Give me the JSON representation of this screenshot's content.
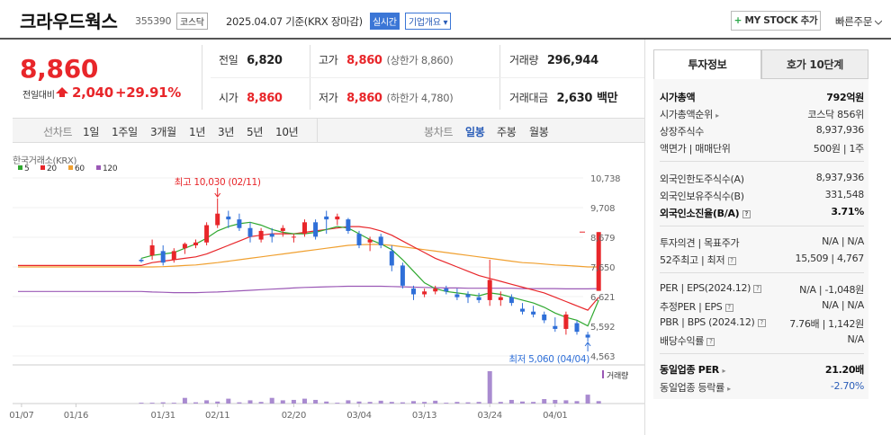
{
  "header": {
    "title": "크라우드웍스",
    "code": "355390",
    "market": "코스닥",
    "date": "2025.04.07",
    "basis": "기준(KRX 장마감)",
    "live_label": "실시간",
    "corp_label": "기업개요 ▾",
    "mystock_plus": "+",
    "mystock_label": "MY STOCK 추가",
    "quick_label": "빠른주문"
  },
  "price": {
    "current": "8,860",
    "diff_label": "전일대비",
    "diff_value": "2,040",
    "diff_pct": "+29.91%"
  },
  "quote": {
    "prev_label": "전일",
    "prev": "6,820",
    "open_label": "시가",
    "open": "8,860",
    "high_label": "고가",
    "high": "8,860",
    "high_sub": "(상한가 8,860)",
    "low_label": "저가",
    "low": "8,860",
    "low_sub": "(하한가 4,780)",
    "vol_label": "거래량",
    "vol": "296,944",
    "amt_label": "거래대금",
    "amt": "2,630",
    "amt_unit": "백만"
  },
  "period_tabs": {
    "label": "선차트",
    "items": [
      "1일",
      "1주일",
      "3개월",
      "1년",
      "3년",
      "5년",
      "10년"
    ],
    "candle_label": "봉차트",
    "candle_items": [
      "일봉",
      "주봉",
      "월봉"
    ],
    "selected": "일봉"
  },
  "chart_data": {
    "type": "candlestick",
    "source": "한국거래소(KRX)",
    "legend": [
      {
        "name": "5",
        "color": "#2fa82f"
      },
      {
        "name": "20",
        "color": "#e8262a"
      },
      {
        "name": "60",
        "color": "#f0a030"
      },
      {
        "name": "120",
        "color": "#9b59b6"
      }
    ],
    "y_ticks": [
      "10,738",
      "9,708",
      "8,679",
      "7,650",
      "6,621",
      "5,592",
      "4,563"
    ],
    "ylim": [
      4563,
      10738
    ],
    "x_ticks": [
      "01/07",
      "01/16",
      "01/31",
      "02/11",
      "02/20",
      "03/04",
      "03/13",
      "03/24",
      "04/01"
    ],
    "high_note": "최고 10,030 (02/11)",
    "low_note": "최저 5,060 (04/04)",
    "volume_label": "거래량",
    "candles": [
      [
        7900,
        7950,
        7800,
        7850
      ],
      [
        8050,
        8600,
        7900,
        8400
      ],
      [
        8200,
        8400,
        7700,
        7800
      ],
      [
        7900,
        8300,
        7800,
        8200
      ],
      [
        8300,
        8500,
        8100,
        8450
      ],
      [
        8400,
        8600,
        8300,
        8500
      ],
      [
        8500,
        9200,
        8400,
        9100
      ],
      [
        9100,
        10030,
        9000,
        9500
      ],
      [
        9400,
        9600,
        9000,
        9300
      ],
      [
        9300,
        9500,
        8900,
        9000
      ],
      [
        9000,
        9200,
        8500,
        8700
      ],
      [
        8600,
        9000,
        8500,
        8900
      ],
      [
        8800,
        9000,
        8500,
        8700
      ],
      [
        8900,
        9100,
        8700,
        9000
      ],
      [
        8700,
        8800,
        8500,
        8700
      ],
      [
        8800,
        9300,
        8700,
        9200
      ],
      [
        9200,
        9300,
        8600,
        8700
      ],
      [
        9400,
        9600,
        8800,
        9300
      ],
      [
        9300,
        9500,
        9100,
        9400
      ],
      [
        9300,
        9350,
        8800,
        8900
      ],
      [
        8800,
        8900,
        8300,
        8400
      ],
      [
        8500,
        8700,
        8200,
        8600
      ],
      [
        8700,
        8800,
        8300,
        8400
      ],
      [
        8200,
        8400,
        7500,
        7700
      ],
      [
        7700,
        7800,
        6900,
        7000
      ],
      [
        6900,
        7000,
        6500,
        6700
      ],
      [
        6700,
        6900,
        6600,
        6800
      ],
      [
        6800,
        7000,
        6700,
        6900
      ],
      [
        6900,
        7000,
        6700,
        6800
      ],
      [
        6700,
        6900,
        6500,
        6600
      ],
      [
        6700,
        6800,
        6400,
        6600
      ],
      [
        6600,
        6750,
        6400,
        6500
      ],
      [
        6500,
        7900,
        6300,
        7200
      ],
      [
        6500,
        6800,
        6300,
        6600
      ],
      [
        6600,
        6700,
        6300,
        6400
      ],
      [
        6200,
        6400,
        6000,
        6100
      ],
      [
        6100,
        6300,
        5900,
        6000
      ],
      [
        6000,
        6100,
        5700,
        5800
      ],
      [
        5600,
        5900,
        5400,
        5500
      ],
      [
        5500,
        6100,
        5300,
        6000
      ],
      [
        5700,
        5800,
        5300,
        5400
      ],
      [
        5300,
        5400,
        5060,
        5200
      ],
      [
        6820,
        8860,
        6820,
        8860
      ]
    ],
    "volumes": [
      2,
      2,
      3,
      2,
      14,
      3,
      8,
      5,
      12,
      3,
      8,
      4,
      14,
      8,
      9,
      12,
      9,
      5,
      2,
      8,
      5,
      4,
      7,
      4,
      3,
      6,
      4,
      7,
      2,
      4,
      3,
      4,
      80,
      4,
      9,
      5,
      4,
      11,
      9,
      8,
      6,
      22,
      6
    ],
    "ma5": [
      7950,
      8050,
      8100,
      8150,
      8300,
      8450,
      8650,
      8900,
      9050,
      9150,
      9200,
      9100,
      8950,
      8850,
      8800,
      8800,
      8850,
      8950,
      9050,
      9000,
      8800,
      8600,
      8450,
      8250,
      7900,
      7500,
      7100,
      6900,
      6800,
      6750,
      6700,
      6650,
      6750,
      6700,
      6600,
      6500,
      6400,
      6250,
      6050,
      5900,
      5800,
      5600,
      6500
    ],
    "ma20": [
      7700,
      7800,
      7850,
      7900,
      7950,
      8000,
      8100,
      8250,
      8400,
      8550,
      8700,
      8750,
      8800,
      8800,
      8800,
      8850,
      8900,
      8950,
      9000,
      9050,
      9050,
      9000,
      8900,
      8750,
      8550,
      8350,
      8150,
      7950,
      7800,
      7650,
      7500,
      7350,
      7250,
      7150,
      7050,
      6950,
      6850,
      6750,
      6600,
      6450,
      6300,
      6150,
      6600
    ],
    "ma60": [
      7650,
      7650,
      7660,
      7680,
      7700,
      7720,
      7760,
      7800,
      7850,
      7900,
      7950,
      8000,
      8050,
      8100,
      8150,
      8200,
      8250,
      8300,
      8350,
      8400,
      8420,
      8430,
      8430,
      8400,
      8350,
      8300,
      8250,
      8200,
      8150,
      8100,
      8050,
      8000,
      7950,
      7900,
      7850,
      7800,
      7780,
      7750,
      7720,
      7700,
      7680,
      7650,
      7650
    ],
    "ma120": [
      6800,
      6780,
      6770,
      6760,
      6760,
      6760,
      6770,
      6780,
      6800,
      6820,
      6840,
      6860,
      6880,
      6900,
      6920,
      6940,
      6950,
      6960,
      6970,
      6980,
      6980,
      6980,
      6980,
      6970,
      6960,
      6950,
      6940,
      6930,
      6920,
      6920,
      6910,
      6910,
      6910,
      6910,
      6910,
      6900,
      6900,
      6900,
      6900,
      6890,
      6890,
      6890,
      6900
    ]
  },
  "side": {
    "tab1": "투자정보",
    "tab2": "호가 10단계",
    "mcap_label": "시가총액",
    "mcap": "792억원",
    "mrank_label": "시가총액순위",
    "mrank": "코스닥 856위",
    "shares_label": "상장주식수",
    "shares": "8,937,936",
    "face_label": "액면가 | 매매단위",
    "face": "500원 | 1주",
    "flimit_label": "외국인한도주식수(A)",
    "flimit": "8,937,936",
    "fhold_label": "외국인보유주식수(B)",
    "fhold": "331,548",
    "fratio_label": "외국인소진율(B/A)",
    "fratio": "3.71%",
    "opinion_label": "투자의견 | 목표주가",
    "opinion": "N/A | N/A",
    "w52_label": "52주최고 | 최저",
    "w52": "15,509 | 4,767",
    "per_label": "PER | EPS(2024.12)",
    "per": "N/A | -1,048원",
    "eper_label": "추정PER | EPS",
    "eper": "N/A | N/A",
    "pbr_label": "PBR | BPS (2024.12)",
    "pbr": "7.76배 | 1,142원",
    "div_label": "배당수익률",
    "div": "N/A",
    "ind_per_label": "동일업종 PER",
    "ind_per": "21.20배",
    "ind_rate_label": "동일업종 등락률",
    "ind_rate": "-2.70%"
  }
}
